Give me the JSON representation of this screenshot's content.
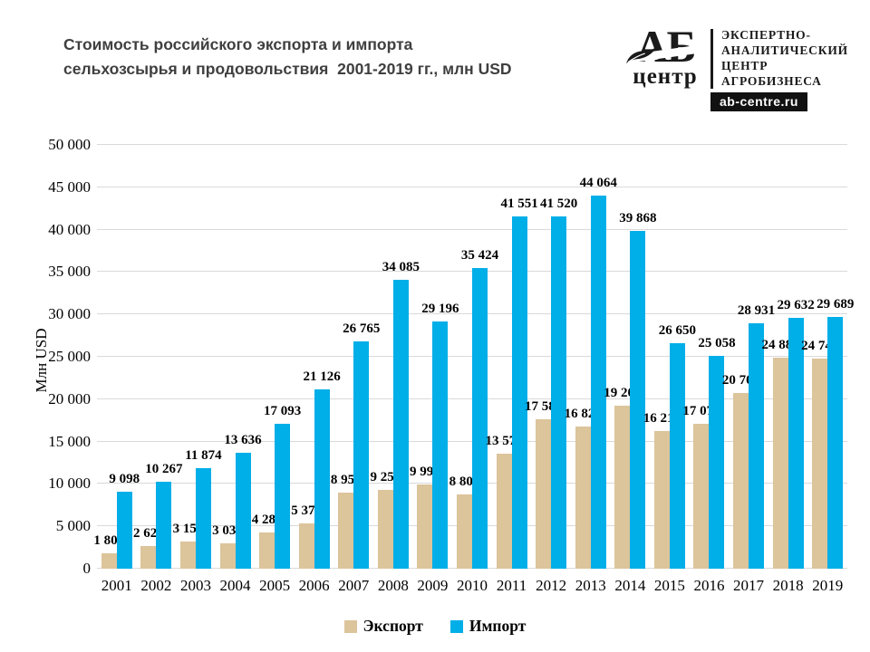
{
  "header": {
    "title_line1": "Стоимость российского экспорта и импорта",
    "title_line2": "сельхозсырья и продовольствия  2001-2019 гг., млн USD",
    "title_color": "#3f3f3f"
  },
  "logo": {
    "mark_top": "АБ",
    "mark_bottom": "центр",
    "org_line1": "ЭКСПЕРТНО-",
    "org_line2": "АНАЛИТИЧЕСКИЙ",
    "org_line3": "ЦЕНТР",
    "org_line4": "АГРОБИЗНЕСА",
    "url": "ab-centre.ru"
  },
  "chart_data": {
    "type": "bar",
    "title": "Стоимость российского экспорта и импорта сельхозсырья и продовольствия 2001-2019 гг., млн USD",
    "ylabel": "Млн USD",
    "ylim": [
      0,
      50000
    ],
    "ytick_step": 5000,
    "grid": true,
    "legend_position": "bottom",
    "colors": {
      "grid": "#d9d9d9",
      "export": "#dcc49b",
      "import": "#00aee8"
    },
    "categories": [
      2001,
      2002,
      2003,
      2004,
      2005,
      2006,
      2007,
      2008,
      2009,
      2010,
      2011,
      2012,
      2013,
      2014,
      2015,
      2016,
      2017,
      2018,
      2019
    ],
    "series": [
      {
        "key": "export",
        "name": "Экспорт",
        "color": "#dcc49b",
        "values": [
          1805,
          2628,
          3156,
          3036,
          4285,
          5375,
          8959,
          9253,
          9990,
          8809,
          13579,
          17581,
          16826,
          19208,
          16215,
          17074,
          20703,
          24885,
          24741
        ]
      },
      {
        "key": "import",
        "name": "Импорт",
        "color": "#00aee8",
        "values": [
          9098,
          10267,
          11874,
          13636,
          17093,
          21126,
          26765,
          34085,
          29196,
          35424,
          41551,
          41520,
          44064,
          39868,
          26650,
          25058,
          28931,
          29632,
          29689
        ]
      }
    ]
  }
}
